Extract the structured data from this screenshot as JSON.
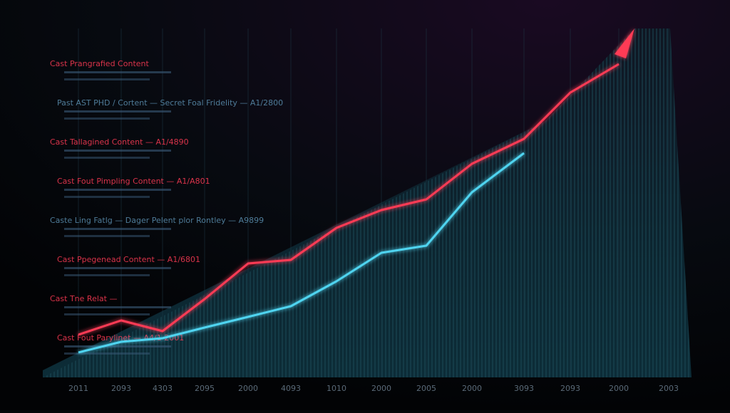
{
  "chart_data": {
    "type": "line",
    "categories": [
      "2011",
      "2093",
      "4303",
      "2095",
      "2000",
      "4093",
      "1010",
      "2000",
      "2005",
      "2000",
      "3093",
      "2093",
      "2000",
      "2003"
    ],
    "series": [
      {
        "name": "Cast Fout Pimpling Content",
        "color": "#ff3b55",
        "values": [
          10,
          14,
          11,
          20,
          30,
          31,
          40,
          45,
          48,
          58,
          65,
          78,
          86,
          null
        ]
      },
      {
        "name": "Cast Fout Parylinet",
        "color": "#4fd4f0",
        "values": [
          5,
          8,
          9,
          12,
          15,
          18,
          25,
          33,
          35,
          50,
          61,
          null,
          null,
          null
        ]
      }
    ],
    "ylim": [
      0,
      100
    ],
    "grid": true,
    "annotations": [
      {
        "text": "Cast Prangrafied Content",
        "color": "#ff3b55"
      },
      {
        "text": "Past AST PHD / Cortent  — Secret Foal Fridelity — A1/2800",
        "color": "#5b8fb0"
      },
      {
        "text": "Cast Tallagined Content  — A1/4890",
        "color": "#ff3b55"
      },
      {
        "text": "Cast Fout Pimpling Content  — A1/A801",
        "color": "#ff3b55"
      },
      {
        "text": "Caste Ling Fatlg — Dager Pelent plor Rontley — A9899",
        "color": "#5b8fb0"
      },
      {
        "text": "Cast Ppegenead Content  — A1/6801",
        "color": "#ff3b55"
      },
      {
        "text": "Cast Tne Relat  —",
        "color": "#ff3b55"
      },
      {
        "text": "Cast Fout Parylinet  — A4/1 2001",
        "color": "#ff3b55"
      }
    ]
  }
}
